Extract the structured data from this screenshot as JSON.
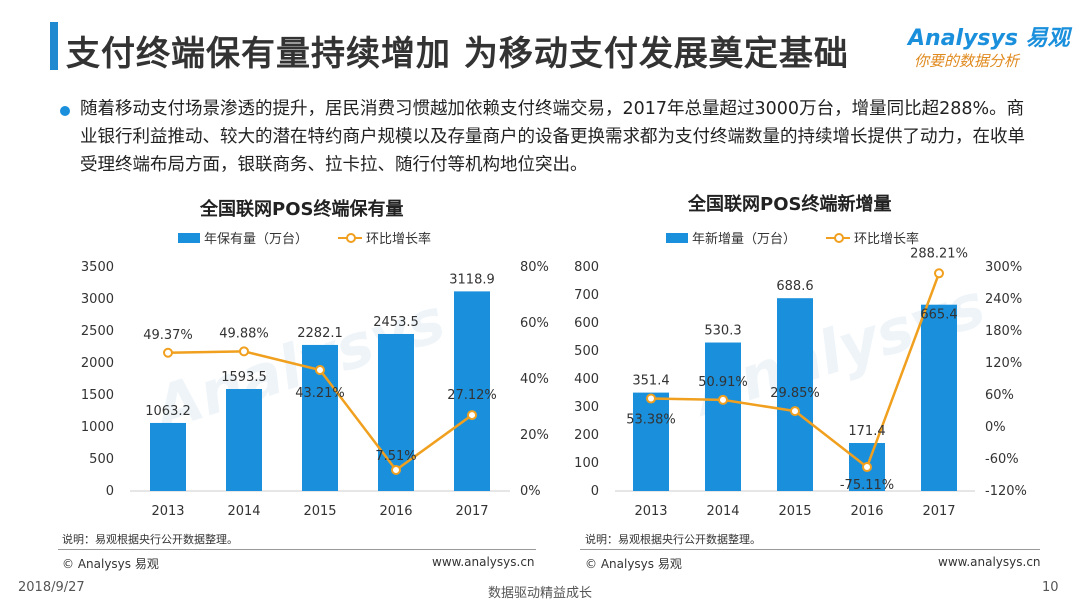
{
  "header": {
    "title": "支付终端保有量持续增加  为移动支付发展奠定基础",
    "logo_brand": "Analysys 易观",
    "logo_slogan": "你要的数据分析"
  },
  "bullet": "随着移动支付场景渗透的提升，居民消费习惯越加依赖支付终端交易，2017年总量超过3000万台，增量同比超288%。商业银行利益推动、较大的潜在特约商户规模以及存量商户的设备更换需求都为支付终端数量的持续增长提供了动力，在收单受理终端布局方面，银联商务、拉卡拉、随行付等机构地位突出。",
  "chart_data": [
    {
      "type": "bar",
      "title": "全国联网POS终端保有量",
      "categories": [
        "2013",
        "2014",
        "2015",
        "2016",
        "2017"
      ],
      "series": [
        {
          "name": "年保有量（万台）",
          "type": "bar",
          "axis": "left",
          "values": [
            1063.2,
            1593.5,
            2282.1,
            2453.5,
            3118.9
          ],
          "labels": [
            "1063.2",
            "1593.5",
            "2282.1",
            "2453.5",
            "3118.9"
          ]
        },
        {
          "name": "环比增长率",
          "type": "line",
          "axis": "right",
          "values": [
            49.37,
            49.88,
            43.21,
            7.51,
            27.12
          ],
          "labels": [
            "49.37%",
            "49.88%",
            "43.21%",
            "7.51%",
            "27.12%"
          ]
        }
      ],
      "ylim": [
        0,
        3500
      ],
      "yticks": [
        0,
        500,
        1000,
        1500,
        2000,
        2500,
        3000,
        3500
      ],
      "y2lim": [
        0,
        80
      ],
      "y2ticks": [
        0,
        20,
        40,
        60,
        80
      ],
      "y2ticklabels": [
        "0%",
        "20%",
        "40%",
        "60%",
        "80%"
      ],
      "note": "说明：易观根据央行公开数据整理。",
      "footer_left": "© Analysys 易观",
      "footer_right": "www.analysys.cn"
    },
    {
      "type": "bar",
      "title": "全国联网POS终端新增量",
      "categories": [
        "2013",
        "2014",
        "2015",
        "2016",
        "2017"
      ],
      "series": [
        {
          "name": "年新增量（万台）",
          "type": "bar",
          "axis": "left",
          "values": [
            351.4,
            530.3,
            688.6,
            171.4,
            665.4
          ],
          "labels": [
            "351.4",
            "530.3",
            "688.6",
            "171.4",
            "665.4"
          ]
        },
        {
          "name": "环比增长率",
          "type": "line",
          "axis": "right",
          "values": [
            53.38,
            50.91,
            29.85,
            -75.11,
            288.21
          ],
          "labels": [
            "53.38%",
            "50.91%",
            "29.85%",
            "-75.11%",
            "288.21%"
          ]
        }
      ],
      "ylim": [
        0,
        800
      ],
      "yticks": [
        0,
        100,
        200,
        300,
        400,
        500,
        600,
        700,
        800
      ],
      "y2lim": [
        -120,
        300
      ],
      "y2ticks": [
        -120,
        -60,
        0,
        60,
        120,
        180,
        240,
        300
      ],
      "y2ticklabels": [
        "-120%",
        "-60%",
        "0%",
        "60%",
        "120%",
        "180%",
        "240%",
        "300%"
      ],
      "note": "说明：易观根据央行公开数据整理。",
      "footer_left": "© Analysys 易观",
      "footer_right": "www.analysys.cn"
    }
  ],
  "colors": {
    "bar": "#1a8fdc",
    "line": "#f0a01e"
  },
  "footer": {
    "date": "2018/9/27",
    "center": "数据驱动精益成长",
    "page": "10"
  }
}
